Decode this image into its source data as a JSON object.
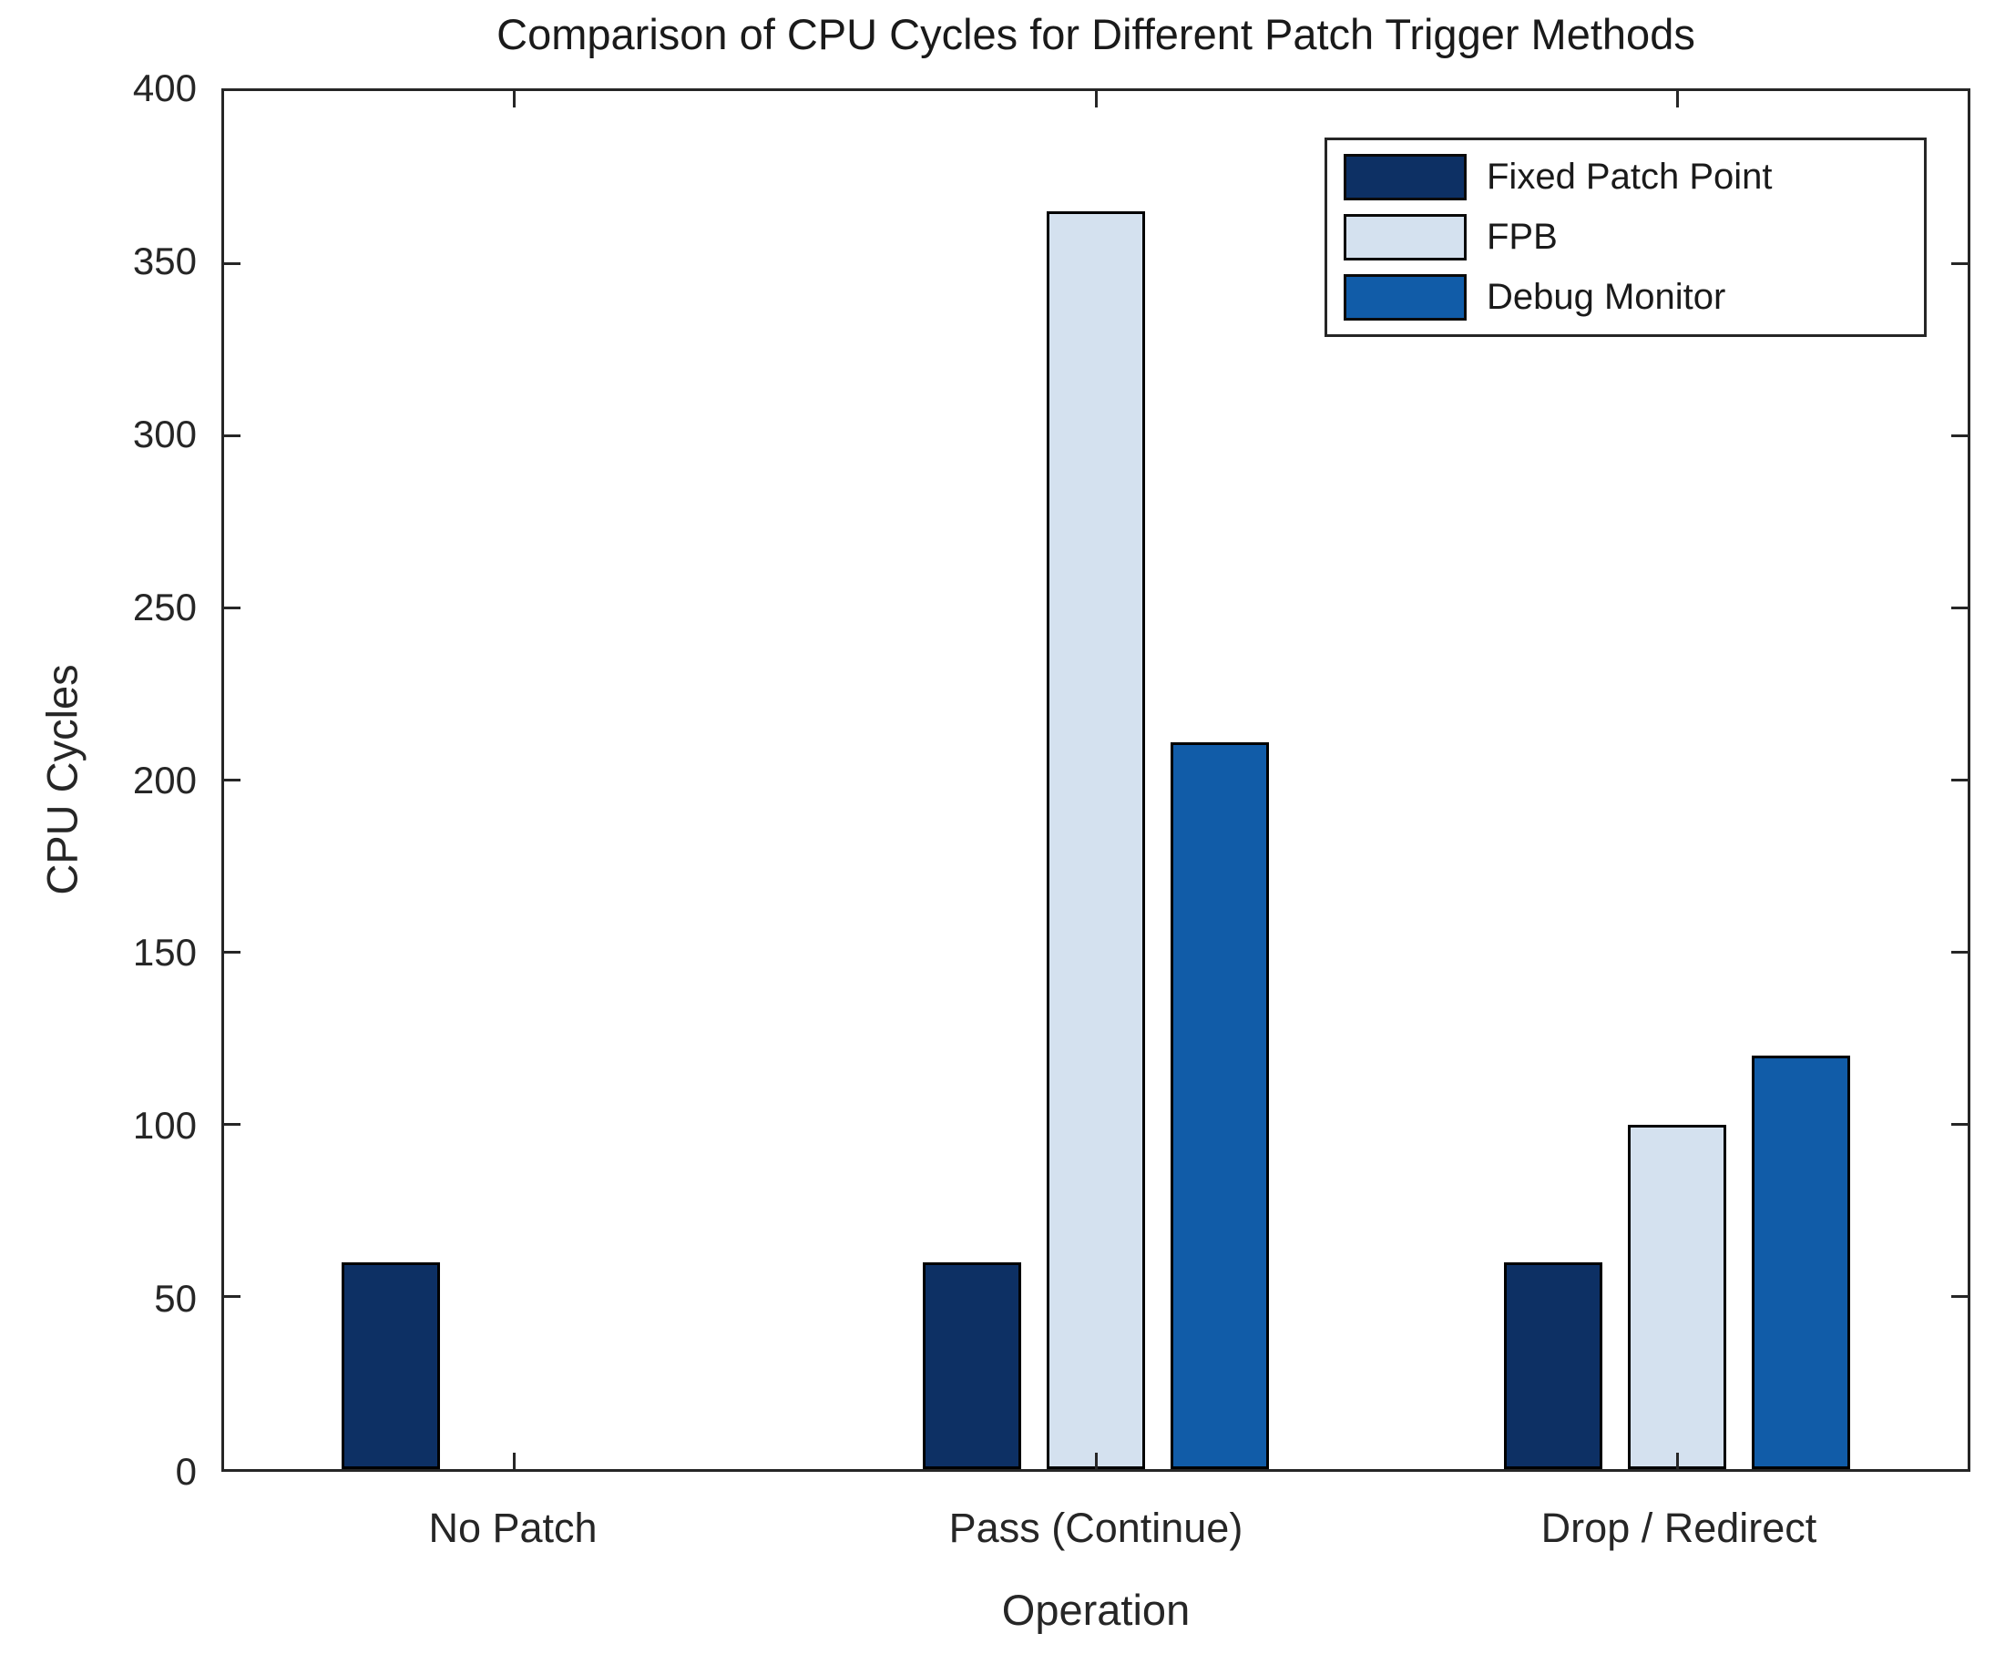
{
  "figure": {
    "title": "Comparison of CPU Cycles for Different Patch Trigger Methods",
    "xlabel": "Operation",
    "ylabel": "CPU Cycles",
    "background_color": "#ffffff",
    "axis_color": "#262626",
    "bar_edge_color": "#000000"
  },
  "chart_data": {
    "type": "bar",
    "title": "Comparison of CPU Cycles for Different Patch Trigger Methods",
    "xlabel": "Operation",
    "ylabel": "CPU Cycles",
    "categories": [
      "No Patch",
      "Pass (Continue)",
      "Drop / Redirect"
    ],
    "series": [
      {
        "name": "Fixed Patch Point",
        "color": "#0d3064",
        "values": [
          60,
          60,
          60
        ]
      },
      {
        "name": "FPB",
        "color": "#d4e1ef",
        "values": [
          0,
          365,
          100
        ]
      },
      {
        "name": "Debug Monitor",
        "color": "#115ca8",
        "values": [
          0,
          211,
          120
        ]
      }
    ],
    "ylim": [
      0,
      400
    ],
    "yticks": [
      0,
      50,
      100,
      150,
      200,
      250,
      300,
      350,
      400
    ],
    "grid": false,
    "legend_position": "upper right",
    "legend_border": true
  }
}
